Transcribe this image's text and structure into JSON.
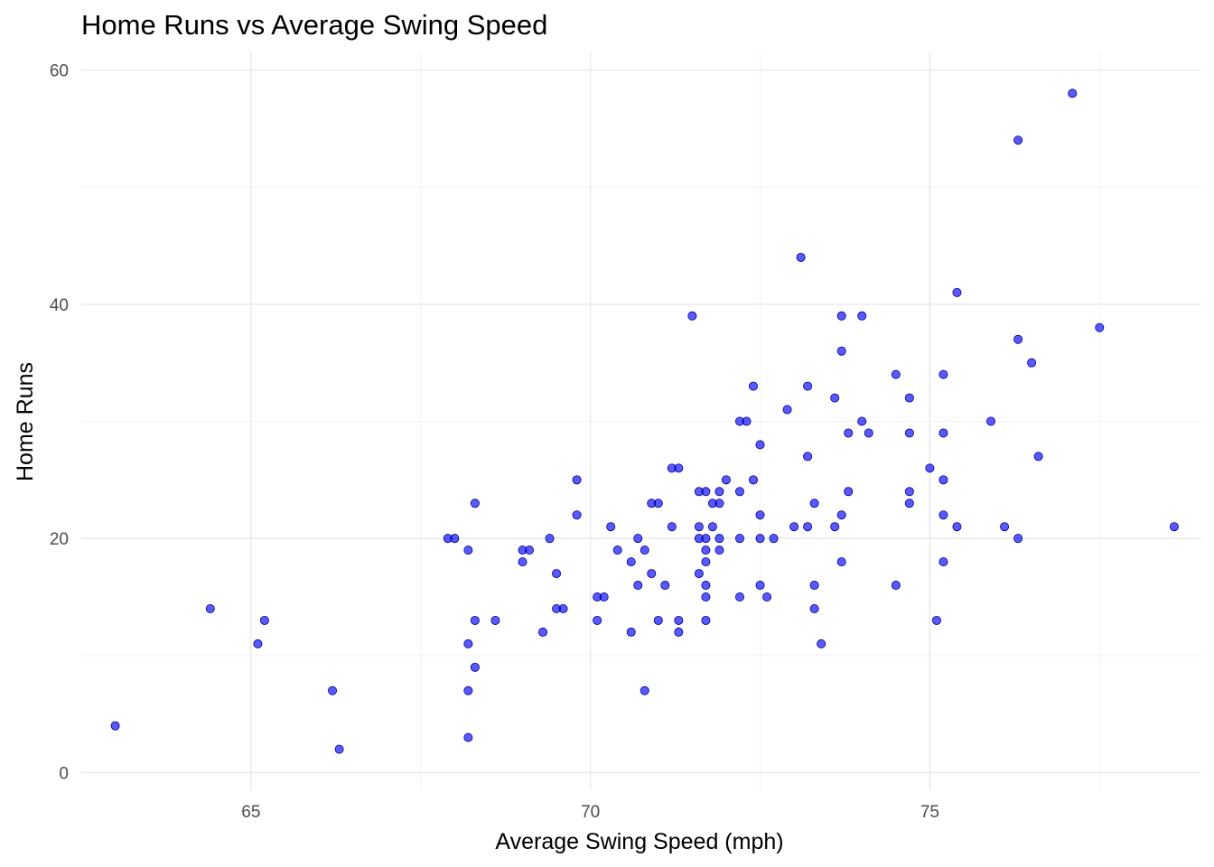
{
  "chart_data": {
    "type": "scatter",
    "title": "Home Runs vs Average Swing Speed",
    "xlabel": "Average Swing Speed (mph)",
    "ylabel": "Home Runs",
    "xlim": [
      62.5,
      79
    ],
    "ylim": [
      -1.5,
      61.5
    ],
    "xticks": [
      65,
      70,
      75
    ],
    "yticks": [
      0,
      20,
      40,
      60
    ],
    "x_minor": [
      67.5,
      72.5,
      77.5
    ],
    "y_minor": [
      10,
      30,
      50
    ],
    "grid": true,
    "point_color": "#0000ff",
    "points": [
      {
        "x": 63.0,
        "y": 4
      },
      {
        "x": 64.4,
        "y": 14
      },
      {
        "x": 65.1,
        "y": 11
      },
      {
        "x": 65.2,
        "y": 13
      },
      {
        "x": 66.2,
        "y": 7
      },
      {
        "x": 66.3,
        "y": 2
      },
      {
        "x": 67.9,
        "y": 20
      },
      {
        "x": 68.0,
        "y": 20
      },
      {
        "x": 68.2,
        "y": 19
      },
      {
        "x": 68.2,
        "y": 11
      },
      {
        "x": 68.2,
        "y": 7
      },
      {
        "x": 68.2,
        "y": 3
      },
      {
        "x": 68.3,
        "y": 23
      },
      {
        "x": 68.3,
        "y": 13
      },
      {
        "x": 68.3,
        "y": 9
      },
      {
        "x": 68.6,
        "y": 13
      },
      {
        "x": 69.0,
        "y": 19
      },
      {
        "x": 69.0,
        "y": 18
      },
      {
        "x": 69.1,
        "y": 19
      },
      {
        "x": 69.3,
        "y": 12
      },
      {
        "x": 69.4,
        "y": 20
      },
      {
        "x": 69.5,
        "y": 17
      },
      {
        "x": 69.5,
        "y": 14
      },
      {
        "x": 69.6,
        "y": 14
      },
      {
        "x": 69.8,
        "y": 25
      },
      {
        "x": 69.8,
        "y": 22
      },
      {
        "x": 70.1,
        "y": 15
      },
      {
        "x": 70.1,
        "y": 13
      },
      {
        "x": 70.2,
        "y": 15
      },
      {
        "x": 70.3,
        "y": 21
      },
      {
        "x": 70.4,
        "y": 19
      },
      {
        "x": 70.6,
        "y": 18
      },
      {
        "x": 70.6,
        "y": 12
      },
      {
        "x": 70.7,
        "y": 20
      },
      {
        "x": 70.7,
        "y": 16
      },
      {
        "x": 70.8,
        "y": 19
      },
      {
        "x": 70.8,
        "y": 7
      },
      {
        "x": 70.9,
        "y": 23
      },
      {
        "x": 70.9,
        "y": 17
      },
      {
        "x": 71.0,
        "y": 23
      },
      {
        "x": 71.0,
        "y": 13
      },
      {
        "x": 71.1,
        "y": 16
      },
      {
        "x": 71.2,
        "y": 26
      },
      {
        "x": 71.2,
        "y": 21
      },
      {
        "x": 71.3,
        "y": 26
      },
      {
        "x": 71.3,
        "y": 13
      },
      {
        "x": 71.3,
        "y": 12
      },
      {
        "x": 71.5,
        "y": 39
      },
      {
        "x": 71.6,
        "y": 24
      },
      {
        "x": 71.6,
        "y": 21
      },
      {
        "x": 71.6,
        "y": 20
      },
      {
        "x": 71.6,
        "y": 17
      },
      {
        "x": 71.7,
        "y": 24
      },
      {
        "x": 71.7,
        "y": 20
      },
      {
        "x": 71.7,
        "y": 19
      },
      {
        "x": 71.7,
        "y": 18
      },
      {
        "x": 71.7,
        "y": 16
      },
      {
        "x": 71.7,
        "y": 15
      },
      {
        "x": 71.7,
        "y": 13
      },
      {
        "x": 71.8,
        "y": 23
      },
      {
        "x": 71.8,
        "y": 21
      },
      {
        "x": 71.9,
        "y": 24
      },
      {
        "x": 71.9,
        "y": 23
      },
      {
        "x": 71.9,
        "y": 20
      },
      {
        "x": 71.9,
        "y": 19
      },
      {
        "x": 72.0,
        "y": 25
      },
      {
        "x": 72.2,
        "y": 30
      },
      {
        "x": 72.2,
        "y": 24
      },
      {
        "x": 72.2,
        "y": 20
      },
      {
        "x": 72.2,
        "y": 15
      },
      {
        "x": 72.3,
        "y": 30
      },
      {
        "x": 72.4,
        "y": 33
      },
      {
        "x": 72.4,
        "y": 25
      },
      {
        "x": 72.5,
        "y": 28
      },
      {
        "x": 72.5,
        "y": 22
      },
      {
        "x": 72.5,
        "y": 20
      },
      {
        "x": 72.5,
        "y": 16
      },
      {
        "x": 72.6,
        "y": 15
      },
      {
        "x": 72.7,
        "y": 20
      },
      {
        "x": 72.9,
        "y": 31
      },
      {
        "x": 73.0,
        "y": 21
      },
      {
        "x": 73.1,
        "y": 44
      },
      {
        "x": 73.2,
        "y": 33
      },
      {
        "x": 73.2,
        "y": 27
      },
      {
        "x": 73.2,
        "y": 21
      },
      {
        "x": 73.3,
        "y": 23
      },
      {
        "x": 73.3,
        "y": 16
      },
      {
        "x": 73.3,
        "y": 14
      },
      {
        "x": 73.4,
        "y": 11
      },
      {
        "x": 73.6,
        "y": 32
      },
      {
        "x": 73.6,
        "y": 21
      },
      {
        "x": 73.7,
        "y": 39
      },
      {
        "x": 73.7,
        "y": 36
      },
      {
        "x": 73.7,
        "y": 22
      },
      {
        "x": 73.7,
        "y": 18
      },
      {
        "x": 73.8,
        "y": 29
      },
      {
        "x": 73.8,
        "y": 24
      },
      {
        "x": 74.0,
        "y": 39
      },
      {
        "x": 74.0,
        "y": 30
      },
      {
        "x": 74.1,
        "y": 29
      },
      {
        "x": 74.5,
        "y": 34
      },
      {
        "x": 74.5,
        "y": 16
      },
      {
        "x": 74.7,
        "y": 32
      },
      {
        "x": 74.7,
        "y": 29
      },
      {
        "x": 74.7,
        "y": 24
      },
      {
        "x": 74.7,
        "y": 23
      },
      {
        "x": 75.0,
        "y": 26
      },
      {
        "x": 75.1,
        "y": 13
      },
      {
        "x": 75.2,
        "y": 34
      },
      {
        "x": 75.2,
        "y": 29
      },
      {
        "x": 75.2,
        "y": 25
      },
      {
        "x": 75.2,
        "y": 22
      },
      {
        "x": 75.2,
        "y": 18
      },
      {
        "x": 75.4,
        "y": 41
      },
      {
        "x": 75.4,
        "y": 21
      },
      {
        "x": 75.9,
        "y": 30
      },
      {
        "x": 76.1,
        "y": 21
      },
      {
        "x": 76.3,
        "y": 54
      },
      {
        "x": 76.3,
        "y": 37
      },
      {
        "x": 76.3,
        "y": 20
      },
      {
        "x": 76.5,
        "y": 35
      },
      {
        "x": 76.6,
        "y": 27
      },
      {
        "x": 77.1,
        "y": 58
      },
      {
        "x": 77.5,
        "y": 38
      },
      {
        "x": 78.6,
        "y": 21
      }
    ]
  }
}
